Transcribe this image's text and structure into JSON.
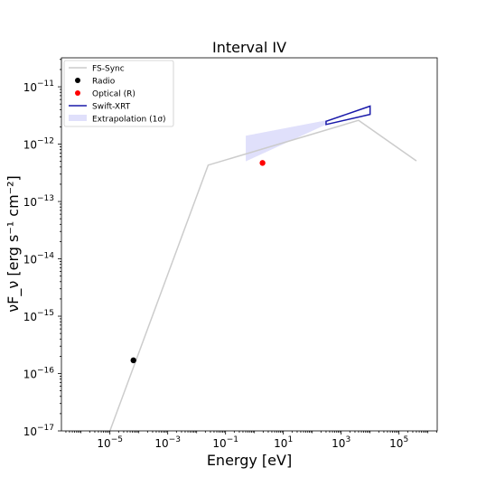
{
  "chart_data": {
    "type": "line",
    "title": "Interval IV",
    "xlabel": "Energy [eV]",
    "ylabel": "νF_ν [erg s⁻¹ cm⁻²]",
    "xscale": "log",
    "yscale": "log",
    "xlim": [
      2.1e-07,
      2100000.0
    ],
    "ylim": [
      1e-17,
      3.2e-11
    ],
    "grid": false,
    "legend_position": "upper-left",
    "x_ticks": [
      {
        "value": 1e-05,
        "base": "10",
        "exp": "−5"
      },
      {
        "value": 0.001,
        "base": "10",
        "exp": "−3"
      },
      {
        "value": 0.1,
        "base": "10",
        "exp": "−1"
      },
      {
        "value": 10.0,
        "base": "10",
        "exp": "1"
      },
      {
        "value": 1000.0,
        "base": "10",
        "exp": "3"
      },
      {
        "value": 100000.0,
        "base": "10",
        "exp": "5"
      }
    ],
    "y_ticks": [
      {
        "value": 1e-17,
        "base": "10",
        "exp": "−17"
      },
      {
        "value": 1e-16,
        "base": "10",
        "exp": "−16"
      },
      {
        "value": 1e-15,
        "base": "10",
        "exp": "−15"
      },
      {
        "value": 1e-14,
        "base": "10",
        "exp": "−14"
      },
      {
        "value": 1e-13,
        "base": "10",
        "exp": "−13"
      },
      {
        "value": 1e-12,
        "base": "10",
        "exp": "−12"
      },
      {
        "value": 1e-11,
        "base": "10",
        "exp": "−11"
      }
    ],
    "series": [
      {
        "name": "FS-Sync",
        "kind": "line",
        "color": "#cccccc",
        "points": [
          [
            1e-05,
            1e-17
          ],
          [
            0.025,
            4.3e-13
          ],
          [
            4000,
            2.6e-12
          ],
          [
            400000,
            5.1e-13
          ]
        ]
      },
      {
        "name": "Radio",
        "kind": "point",
        "color": "#000000",
        "points": [
          [
            6.5e-05,
            1.7e-16
          ]
        ]
      },
      {
        "name": "Optical (R)",
        "kind": "point",
        "color": "#ff0000",
        "points": [
          [
            1.9,
            4.7e-13
          ]
        ]
      },
      {
        "name": "Swift-XRT",
        "kind": "outline",
        "color": "#1a1aaa",
        "points": [
          [
            300,
            2.2e-12
          ],
          [
            10000,
            3.3e-12
          ],
          [
            10000,
            4.6e-12
          ],
          [
            300,
            2.5e-12
          ]
        ]
      },
      {
        "name": "Extrapolation (1σ)",
        "kind": "band",
        "color": "#e0e0fb",
        "points": [
          [
            0.5,
            5e-13
          ],
          [
            300,
            2.2e-12
          ],
          [
            300,
            2.6e-12
          ],
          [
            0.5,
            1.4e-12
          ]
        ]
      }
    ]
  }
}
